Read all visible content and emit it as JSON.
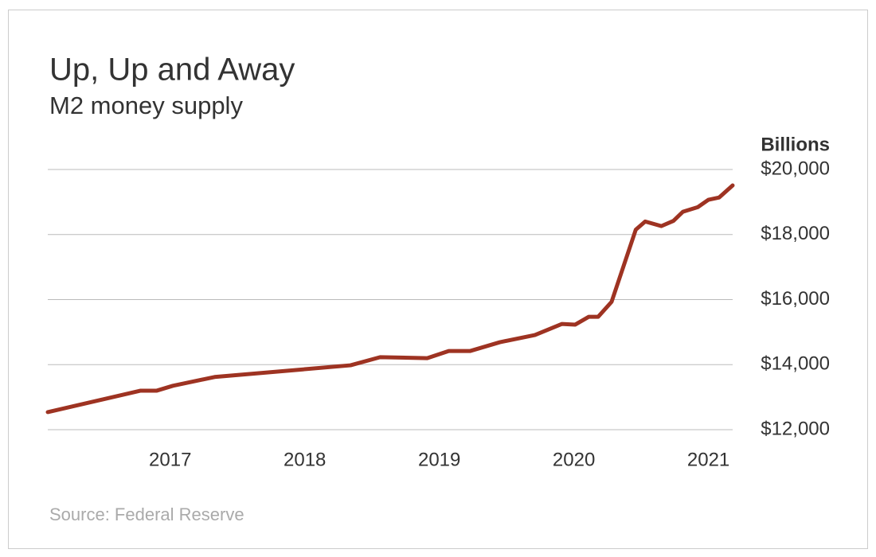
{
  "chart_data": {
    "type": "line",
    "title": "Up, Up and Away",
    "subtitle": "M2 money supply",
    "y_label": "Billions",
    "source": "Source: Federal Reserve",
    "x": [
      2016.09,
      2016.78,
      2016.9,
      2017.02,
      2017.33,
      2018.34,
      2018.56,
      2018.91,
      2019.07,
      2019.23,
      2019.45,
      2019.71,
      2019.91,
      2020.01,
      2020.11,
      2020.18,
      2020.28,
      2020.46,
      2020.53,
      2020.65,
      2020.74,
      2020.81,
      2020.92,
      2021.0,
      2021.08,
      2021.18
    ],
    "series": [
      {
        "name": "M2",
        "color": "#9e3322",
        "values": [
          12540,
          13200,
          13200,
          13350,
          13620,
          13980,
          14230,
          14200,
          14420,
          14420,
          14690,
          14910,
          15250,
          15230,
          15470,
          15470,
          15930,
          18150,
          18400,
          18260,
          18420,
          18700,
          18840,
          19070,
          19140,
          19510
        ]
      }
    ],
    "xlim": [
      2016.09,
      2021.18
    ],
    "xticks": [
      2017,
      2018,
      2019,
      2020,
      2021
    ],
    "ylim": [
      12000,
      20000
    ],
    "yticks": [
      {
        "value": 12000,
        "label": "$12,000"
      },
      {
        "value": 14000,
        "label": "$14,000"
      },
      {
        "value": 16000,
        "label": "$16,000"
      },
      {
        "value": 18000,
        "label": "$18,000"
      },
      {
        "value": 20000,
        "label": "$20,000"
      }
    ],
    "grid": true
  }
}
